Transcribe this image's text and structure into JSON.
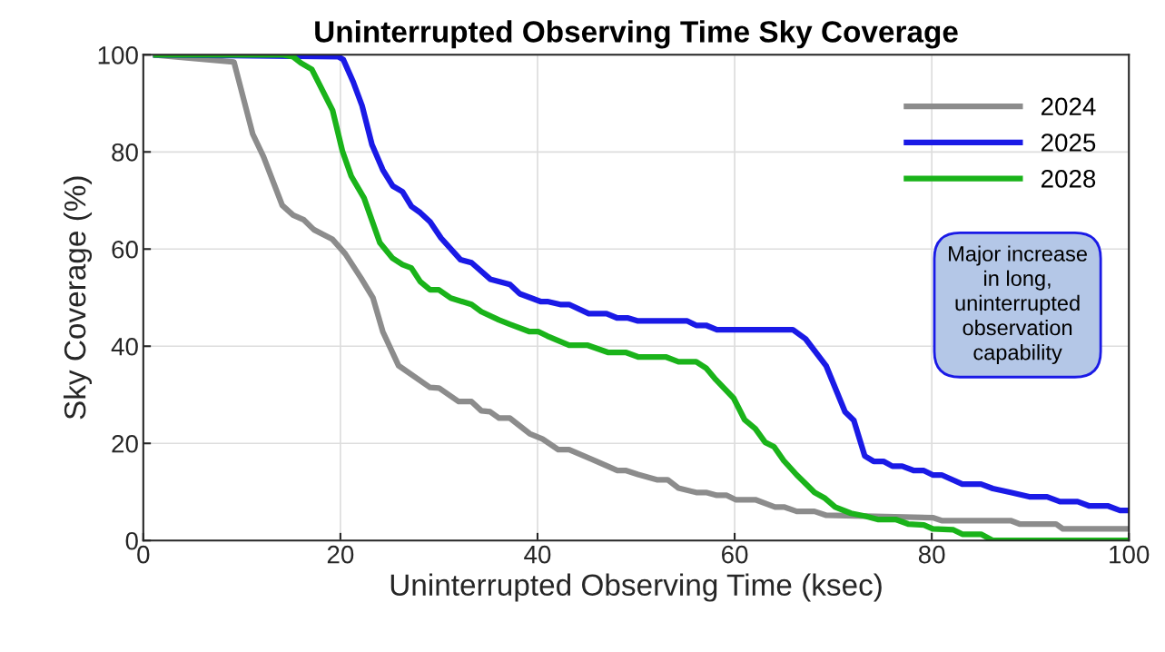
{
  "chart_data": {
    "type": "line",
    "title": "Uninterrupted Observing Time Sky Coverage",
    "xlabel": "Uninterrupted Observing Time (ksec)",
    "ylabel": "Sky Coverage (%)",
    "xlim": [
      0,
      100
    ],
    "xticks": [
      0,
      20,
      40,
      60,
      80,
      100
    ],
    "ylim": [
      0,
      100
    ],
    "yticks": [
      0,
      20,
      40,
      60,
      80,
      100
    ],
    "grid": true,
    "legend": "top right",
    "marker": "none",
    "line_style": "solid",
    "annotations": [
      "Major increase\nin long,\nuninterrupted\nobservation\ncapability"
    ],
    "series": [
      {
        "name": "2024",
        "color": "#8c8c8c",
        "x": [
          1,
          9.2,
          11.1,
          12.2,
          14.1,
          15.2,
          16.3,
          17.3,
          19.2,
          20.5,
          22.1,
          23.3,
          24.3,
          25.9,
          29.1,
          30,
          32,
          33.3,
          34.3,
          35.2,
          36.1,
          37.2,
          39.2,
          40.5,
          42.1,
          43.2,
          46,
          48.1,
          49,
          50.2,
          52.1,
          53.2,
          54.3,
          56.1,
          57.1,
          58.2,
          59.2,
          60.1,
          62.1,
          64.1,
          65,
          66.3,
          68.1,
          69.3,
          80.1,
          81,
          88,
          88.9,
          92.6,
          93.3,
          100
        ],
        "values": [
          100,
          98.5,
          83.7,
          79,
          69,
          67,
          66,
          64,
          62,
          59,
          54,
          50,
          43,
          36,
          31.5,
          31.4,
          28.6,
          28.6,
          26.7,
          26.5,
          25.2,
          25.2,
          22,
          20.9,
          18.7,
          18.7,
          16.3,
          14.4,
          14.4,
          13.6,
          12.5,
          12.5,
          10.8,
          9.9,
          9.9,
          9.3,
          9.3,
          8.4,
          8.4,
          6.9,
          6.9,
          6,
          6,
          5.2,
          4.7,
          4.1,
          4.1,
          3.4,
          3.4,
          2.4,
          2.4
        ]
      },
      {
        "name": "2025",
        "color": "#1a1ae6",
        "x": [
          1,
          19.8,
          20.3,
          21.3,
          22.2,
          23.2,
          24.3,
          25.3,
          26.3,
          27.2,
          28.1,
          29.1,
          30.2,
          32.2,
          33.3,
          35.2,
          37.2,
          38.2,
          40.3,
          41,
          42.3,
          43.2,
          45.2,
          47,
          48.1,
          49.2,
          50.2,
          55.2,
          56.1,
          57.1,
          58.2,
          65.9,
          67.2,
          69.3,
          71.2,
          72.1,
          73.2,
          74.1,
          75.1,
          76,
          77,
          78.2,
          79.2,
          80.1,
          81,
          83.1,
          85,
          86.2,
          88,
          89.9,
          91.7,
          93,
          94.8,
          96,
          97.9,
          99.1,
          100
        ],
        "values": [
          100,
          99.6,
          99,
          94.4,
          89.5,
          81.5,
          76.3,
          73,
          71.8,
          68.8,
          67.5,
          65.6,
          62.3,
          57.8,
          57.2,
          53.8,
          52.7,
          50.8,
          49.2,
          49.2,
          48.6,
          48.6,
          46.7,
          46.7,
          45.8,
          45.8,
          45.2,
          45.2,
          44.3,
          44.3,
          43.4,
          43.4,
          41.5,
          35.9,
          26.5,
          24.7,
          17.4,
          16.3,
          16.3,
          15.3,
          15.3,
          14.4,
          14.4,
          13.5,
          13.5,
          11.6,
          11.6,
          10.7,
          9.9,
          9,
          9,
          8,
          8,
          7.1,
          7.1,
          6.2,
          6.2
        ]
      },
      {
        "name": "2028",
        "color": "#1ab31a",
        "x": [
          1,
          14.2,
          15.2,
          16,
          17.1,
          19.2,
          20.2,
          21.1,
          22.4,
          24,
          25.3,
          26.3,
          27.2,
          28.1,
          29.1,
          30,
          31.2,
          33.3,
          34.3,
          36.1,
          37.2,
          39.2,
          40.1,
          41,
          43.2,
          45.1,
          47.2,
          49,
          50.2,
          53,
          54.3,
          56.1,
          57.1,
          58.1,
          59.9,
          61,
          62.1,
          63.1,
          64,
          65,
          66.3,
          68.1,
          69.1,
          70.2,
          71.8,
          73.3,
          74.6,
          76.4,
          77.6,
          79.2,
          80.1,
          82.2,
          83.1,
          85,
          86.2,
          100
        ],
        "values": [
          100,
          100,
          99.6,
          98.3,
          97,
          88.6,
          80.2,
          75,
          70.5,
          61.3,
          58.1,
          56.8,
          56.1,
          53.3,
          51.6,
          51.6,
          49.9,
          48.6,
          47.1,
          45.4,
          44.5,
          43,
          43,
          42.1,
          40.2,
          40.2,
          38.7,
          38.7,
          37.8,
          37.8,
          36.8,
          36.8,
          35.5,
          33.1,
          29.3,
          24.9,
          23,
          20.2,
          19.3,
          16.4,
          13.5,
          9.9,
          8.8,
          6.9,
          5.6,
          5,
          4.3,
          4.3,
          3.4,
          3.2,
          2.4,
          2.2,
          1.3,
          1.3,
          0,
          0
        ]
      }
    ]
  }
}
